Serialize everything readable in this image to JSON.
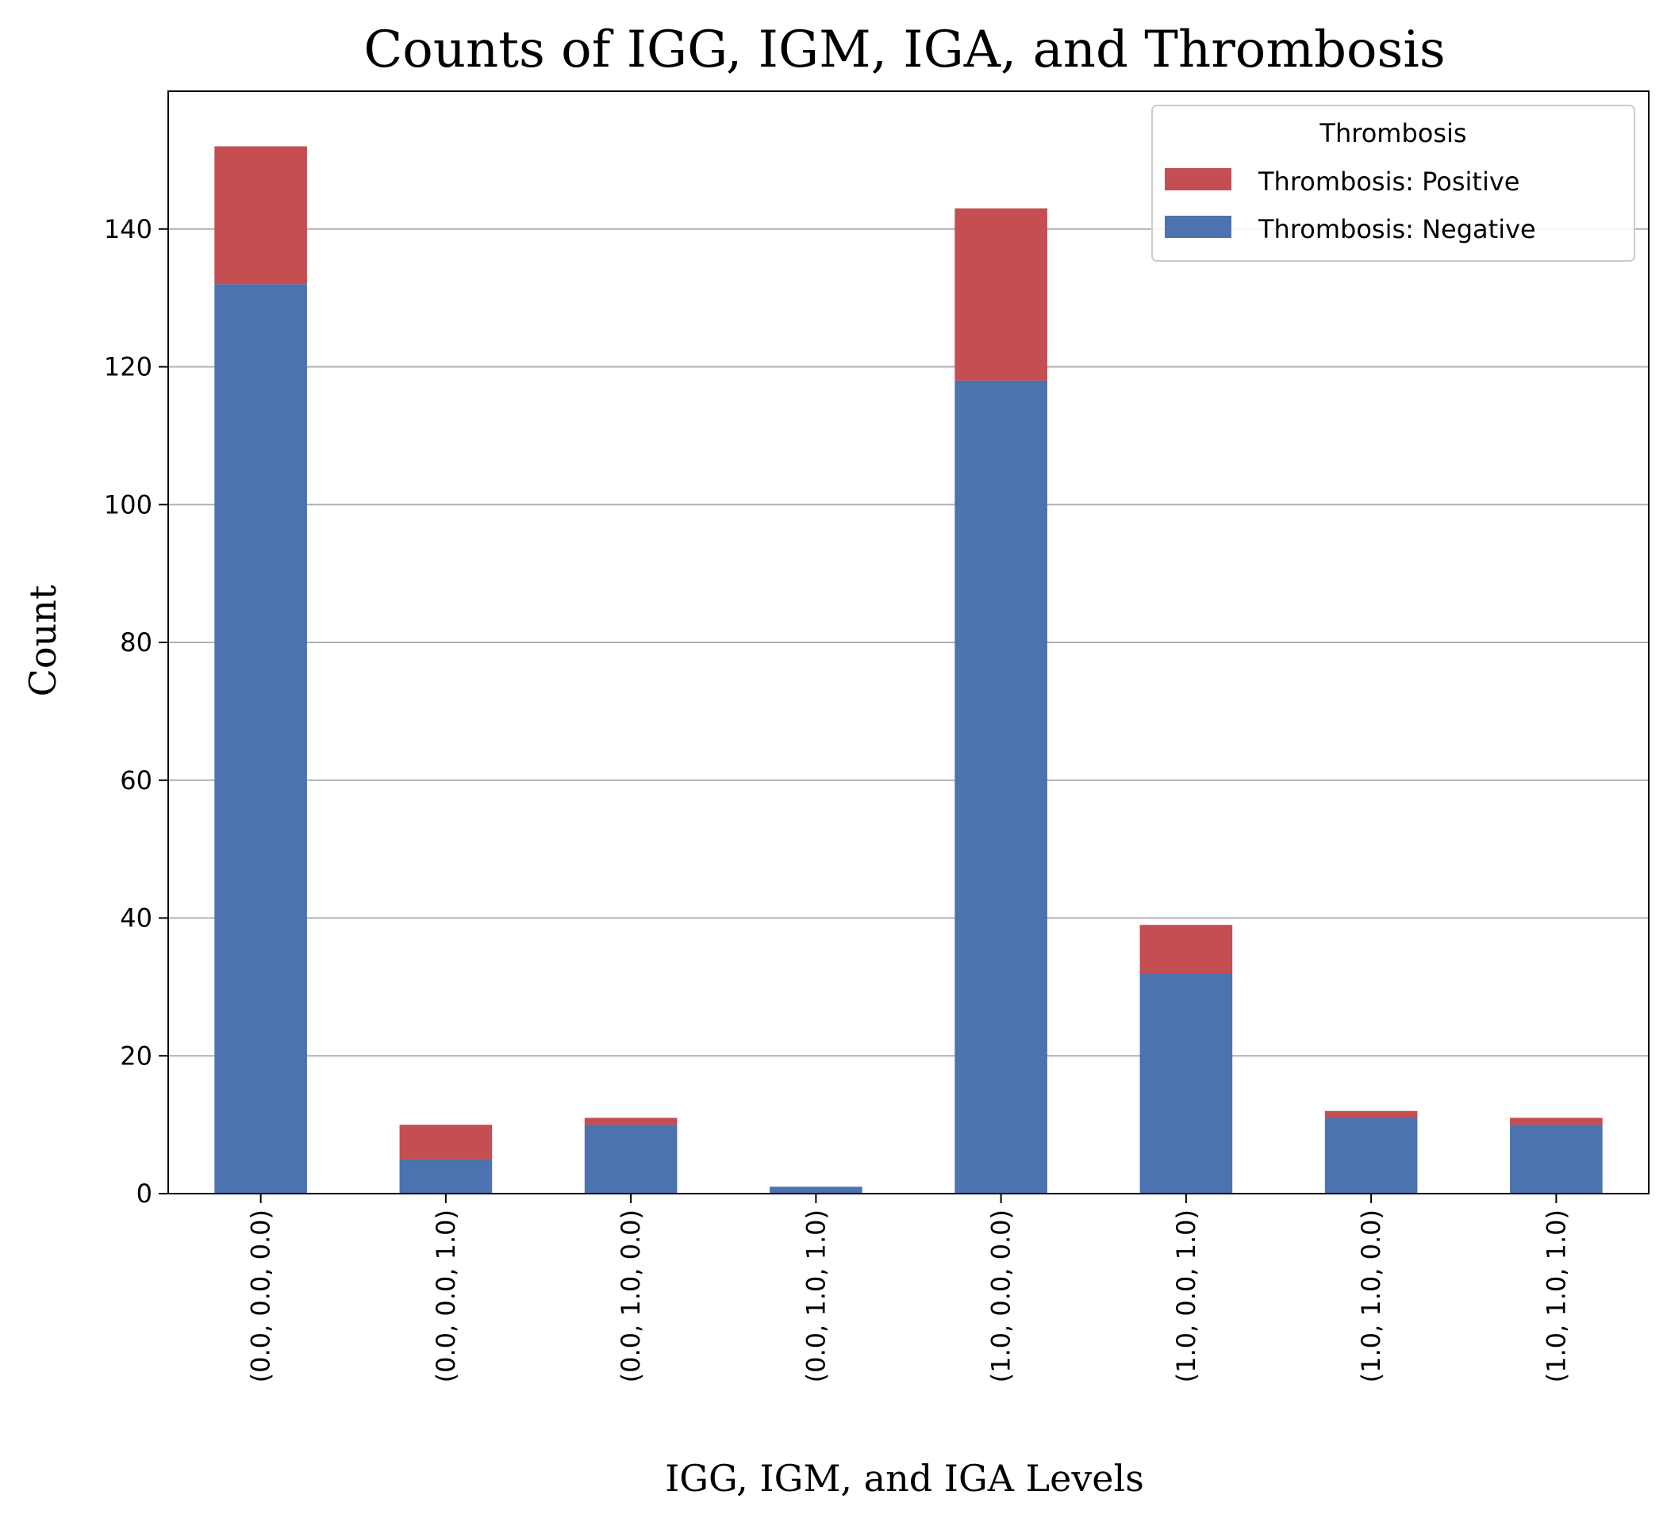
{
  "chart_data": {
    "type": "bar",
    "stacked": true,
    "title": "Counts of IGG, IGM, IGA, and Thrombosis",
    "xlabel": "IGG, IGM, and IGA Levels",
    "ylabel": "Count",
    "categories": [
      "(0.0, 0.0, 0.0)",
      "(0.0, 0.0, 1.0)",
      "(0.0, 1.0, 0.0)",
      "(0.0, 1.0, 1.0)",
      "(1.0, 0.0, 0.0)",
      "(1.0, 0.0, 1.0)",
      "(1.0, 1.0, 0.0)",
      "(1.0, 1.0, 1.0)"
    ],
    "series": [
      {
        "name": "Thrombosis: Negative",
        "color": "#4c72b0",
        "values": [
          132,
          5,
          10,
          1,
          118,
          32,
          11,
          10
        ]
      },
      {
        "name": "Thrombosis: Positive",
        "color": "#c44e52",
        "values": [
          20,
          5,
          1,
          0,
          25,
          7,
          1,
          1
        ]
      }
    ],
    "ylim": [
      0,
      160
    ],
    "yticks": [
      0,
      20,
      40,
      60,
      80,
      100,
      120,
      140
    ],
    "grid": {
      "y": true,
      "x": false
    },
    "legend": {
      "title": "Thrombosis",
      "placement": "top-right",
      "order": [
        "Thrombosis: Positive",
        "Thrombosis: Negative"
      ]
    }
  }
}
